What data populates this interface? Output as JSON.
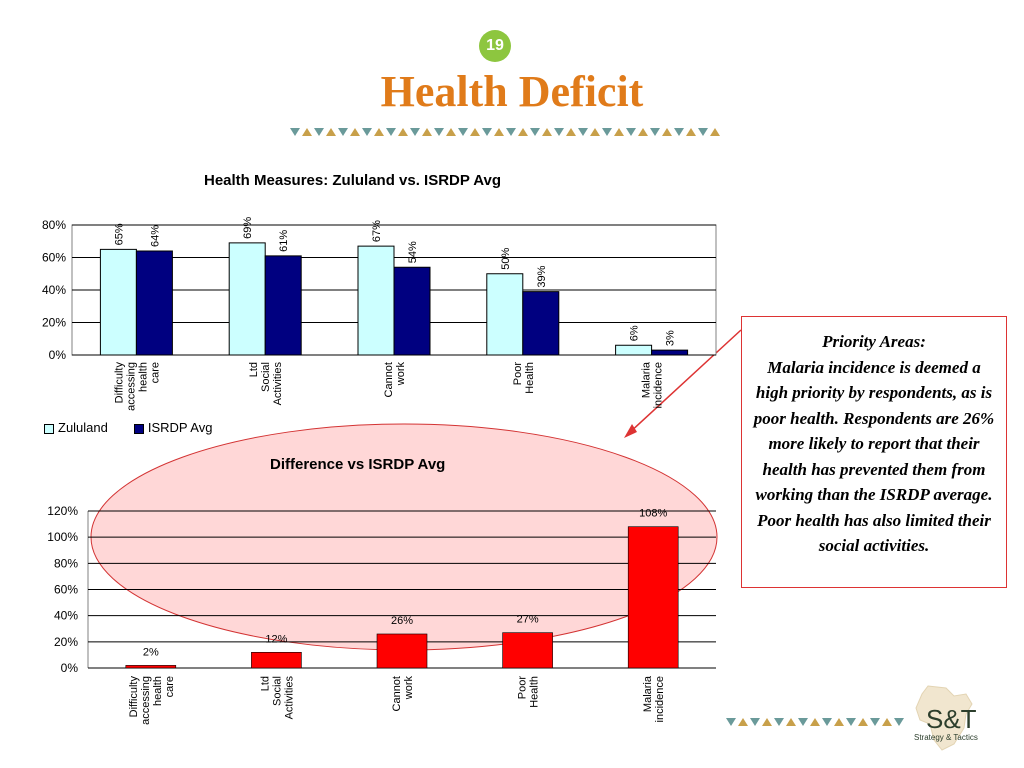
{
  "slide": {
    "page_number": "19",
    "title": "Health Deficit"
  },
  "callout": {
    "heading": "Priority Areas:",
    "body": "Malaria incidence is deemed a high priority by respondents, as is poor health. Respondents are 26% more likely to report that their health has prevented them from working than the ISRDP average. Poor health has also limited their social activities."
  },
  "logo": {
    "mark": "S&T",
    "tagline": "Strategy & Tactics"
  },
  "colors": {
    "title": "#e07b1a",
    "zululand": "#ccffff",
    "isrdp": "#000080",
    "difference": "#ff0000",
    "ellipse_fill": "#ffd0d0",
    "ellipse_stroke": "#d33333",
    "band_a": "#6a9a9a",
    "band_b": "#c8a04a"
  },
  "chart_data": [
    {
      "type": "bar",
      "title": "Health Measures: Zululand vs. ISRDP Avg",
      "categories": [
        "Difficulty accessing health care",
        "Ltd Social Activities",
        "Cannot work",
        "Poor Health",
        "Malaria incidence"
      ],
      "series": [
        {
          "name": "Zululand",
          "values": [
            65,
            69,
            67,
            50,
            6
          ],
          "labels": [
            "65%",
            "69%",
            "67%",
            "50%",
            "6%"
          ]
        },
        {
          "name": "ISRDP Avg",
          "values": [
            64,
            61,
            54,
            39,
            3
          ],
          "labels": [
            "64%",
            "61%",
            "54%",
            "39%",
            "3%"
          ]
        }
      ],
      "y_ticks": [
        "0%",
        "20%",
        "40%",
        "60%",
        "80%"
      ],
      "ylim": [
        0,
        80
      ],
      "grid": true,
      "legend": "bottom-left"
    },
    {
      "type": "bar",
      "title": "Difference vs ISRDP Avg",
      "categories": [
        "Difficulty accessing health care",
        "Ltd Social Activities",
        "Cannot work",
        "Poor Health",
        "Malaria incidence"
      ],
      "values": [
        2,
        12,
        26,
        27,
        108
      ],
      "labels": [
        "2%",
        "12%",
        "26%",
        "27%",
        "108%"
      ],
      "y_ticks": [
        "0%",
        "20%",
        "40%",
        "60%",
        "80%",
        "100%",
        "120%"
      ],
      "ylim": [
        0,
        120
      ],
      "grid": true
    }
  ]
}
